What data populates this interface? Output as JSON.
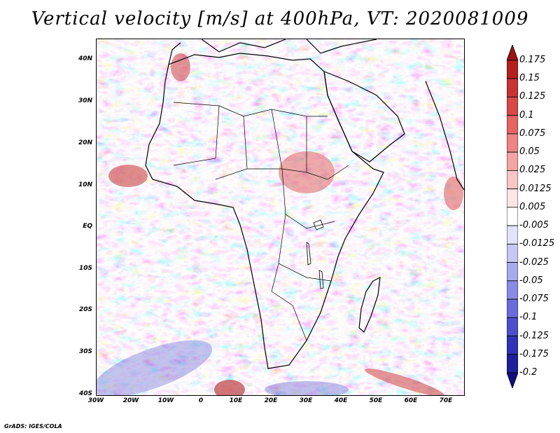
{
  "title": "Vertical velocity [m/s] at 400hPa, VT: 2020081009",
  "credit": "GrADS: IGES/COLA",
  "map": {
    "lat_labels": [
      "40N",
      "30N",
      "20N",
      "10N",
      "EQ",
      "10S",
      "20S",
      "30S",
      "40S"
    ],
    "lon_labels": [
      "30W",
      "20W",
      "10W",
      "0",
      "10E",
      "20E",
      "30E",
      "40E",
      "50E",
      "60E",
      "70E"
    ],
    "lat_range": [
      -40,
      44
    ],
    "lon_range": [
      -30,
      75
    ]
  },
  "colorbar": {
    "levels": [
      "0.175",
      "0.15",
      "0.125",
      "0.1",
      "0.075",
      "0.05",
      "0.025",
      "0.0125",
      "0.005",
      "-0.005",
      "-0.0125",
      "-0.025",
      "-0.05",
      "-0.075",
      "-0.1",
      "-0.125",
      "-0.175",
      "-0.2"
    ],
    "colors": [
      "#9a1212",
      "#b31f1f",
      "#c83232",
      "#d94848",
      "#e56464",
      "#ee8484",
      "#f4a4a4",
      "#f9c6c6",
      "#fde6e6",
      "#ffffff",
      "#e2e2fb",
      "#c7c7f6",
      "#a9a9ef",
      "#8a8ae6",
      "#6b6bdb",
      "#4d4dcc",
      "#3232b6",
      "#20209a",
      "#101080"
    ]
  },
  "colors": {
    "positive": "#e36060",
    "negative": "#6a6adc",
    "background": "#d8d8f4",
    "coastline": "#000000"
  }
}
